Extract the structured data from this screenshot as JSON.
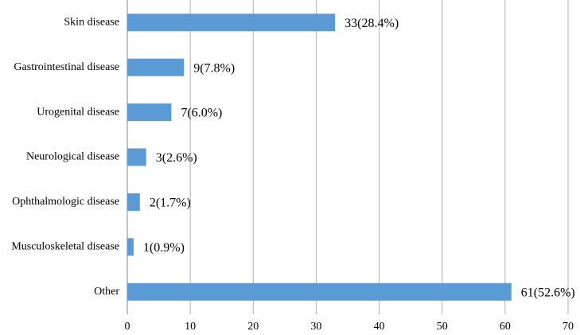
{
  "chart_data": {
    "type": "bar",
    "orientation": "horizontal",
    "categories": [
      "Skin disease",
      "Gastrointestinal disease",
      "Urogenital disease",
      "Neurological disease",
      "Ophthalmologic disease",
      "Musculoskeletal disease",
      "Other"
    ],
    "values": [
      33,
      9,
      7,
      3,
      2,
      1,
      61
    ],
    "value_labels": [
      "33(28.4%)",
      "9(7.8%)",
      "7(6.0%)",
      "3(2.6%)",
      "2(1.7%)",
      "1(0.9%)",
      "61(52.6%)"
    ],
    "color": "#5b9bd5",
    "xlim": [
      0,
      70
    ],
    "xticks": [
      0,
      10,
      20,
      30,
      40,
      50,
      60,
      70
    ],
    "grid": true
  }
}
